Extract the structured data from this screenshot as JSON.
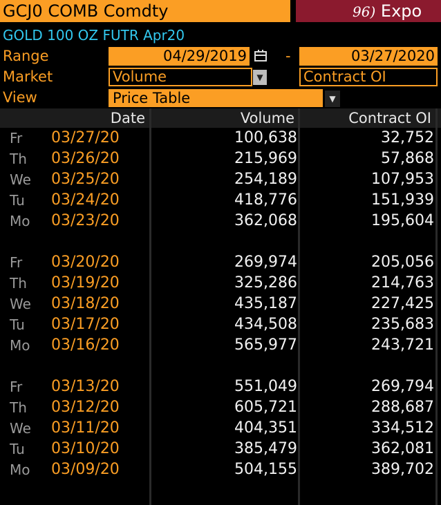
{
  "header": {
    "ticker": "GCJ0 COMB Comdty",
    "export_number": "96)",
    "export_label": "Expo",
    "security_desc": "GOLD 100 OZ FUTR  Apr20"
  },
  "controls": {
    "range_label": "Range",
    "range_start": "04/29/2019",
    "range_sep": "-",
    "range_end": "03/27/2020",
    "market_label": "Market",
    "market_value": "Volume",
    "market_secondary": "Contract OI",
    "view_label": "View",
    "view_value": "Price Table"
  },
  "table": {
    "headers": {
      "date": "Date",
      "volume": "Volume",
      "oi": "Contract OI"
    },
    "weeks": [
      [
        {
          "dow": "Fr",
          "date": "03/27/20",
          "volume": "100,638",
          "oi": "32,752"
        },
        {
          "dow": "Th",
          "date": "03/26/20",
          "volume": "215,969",
          "oi": "57,868"
        },
        {
          "dow": "We",
          "date": "03/25/20",
          "volume": "254,189",
          "oi": "107,953"
        },
        {
          "dow": "Tu",
          "date": "03/24/20",
          "volume": "418,776",
          "oi": "151,939"
        },
        {
          "dow": "Mo",
          "date": "03/23/20",
          "volume": "362,068",
          "oi": "195,604"
        }
      ],
      [
        {
          "dow": "Fr",
          "date": "03/20/20",
          "volume": "269,974",
          "oi": "205,056"
        },
        {
          "dow": "Th",
          "date": "03/19/20",
          "volume": "325,286",
          "oi": "214,763"
        },
        {
          "dow": "We",
          "date": "03/18/20",
          "volume": "435,187",
          "oi": "227,425"
        },
        {
          "dow": "Tu",
          "date": "03/17/20",
          "volume": "434,508",
          "oi": "235,683"
        },
        {
          "dow": "Mo",
          "date": "03/16/20",
          "volume": "565,977",
          "oi": "243,721"
        }
      ],
      [
        {
          "dow": "Fr",
          "date": "03/13/20",
          "volume": "551,049",
          "oi": "269,794"
        },
        {
          "dow": "Th",
          "date": "03/12/20",
          "volume": "605,721",
          "oi": "288,687"
        },
        {
          "dow": "We",
          "date": "03/11/20",
          "volume": "404,351",
          "oi": "334,512"
        },
        {
          "dow": "Tu",
          "date": "03/10/20",
          "volume": "385,479",
          "oi": "362,081"
        },
        {
          "dow": "Mo",
          "date": "03/09/20",
          "volume": "504,155",
          "oi": "389,702"
        }
      ]
    ]
  },
  "colors": {
    "accent": "#fb9e24",
    "security": "#32c8ef",
    "export_bg": "#8b1a2e"
  },
  "icons": {
    "calendar": "calendar-icon",
    "dropdown": "chevron-down-icon"
  }
}
